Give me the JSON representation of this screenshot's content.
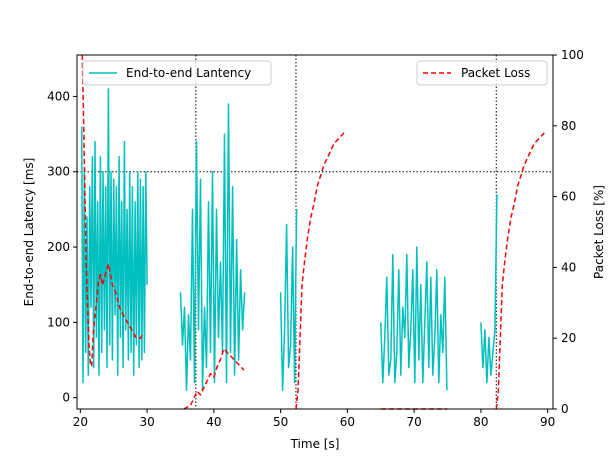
{
  "chart_data": {
    "type": "line",
    "xlabel": "Time [s]",
    "ylabel_left": "End-to-end Latency [ms]",
    "ylabel_right": "Packet Loss [%]",
    "xlim": [
      19.5,
      90.8
    ],
    "ylim_left": [
      -15,
      455
    ],
    "ylim_right": [
      0,
      100
    ],
    "x_ticks": [
      "20",
      "30",
      "40",
      "50",
      "60",
      "70",
      "80",
      "90"
    ],
    "y_left_ticks": [
      "0",
      "100",
      "200",
      "300",
      "400"
    ],
    "y_right_ticks": [
      "0",
      "20",
      "40",
      "60",
      "80",
      "100"
    ],
    "grid": false,
    "reference_lines": {
      "vertical_x": [
        37.3,
        52.3,
        82.3
      ],
      "horizontal_left_y": 300,
      "style": "dotted",
      "color": "#000000"
    },
    "legends": [
      {
        "label": "End-to-end Lantency",
        "placement": "upper-left"
      },
      {
        "label": "Packet Loss",
        "placement": "upper-right"
      }
    ],
    "series": [
      {
        "name": "End-to-end Lantency",
        "axis": "left",
        "color": "#00bfbf",
        "style": "solid",
        "segments": [
          {
            "x": [
              20.2,
              20.4,
              20.6,
              20.8,
              21.0,
              21.2,
              21.4,
              21.6,
              21.8,
              22.0,
              22.2,
              22.4,
              22.6,
              22.8,
              23.0,
              23.2,
              23.4,
              23.6,
              23.8,
              24.0,
              24.2,
              24.4,
              24.6,
              24.8,
              25.0,
              25.2,
              25.4,
              25.6,
              25.8,
              26.0,
              26.2,
              26.4,
              26.6,
              26.8,
              27.0,
              27.2,
              27.4,
              27.6,
              27.8,
              28.0,
              28.2,
              28.4,
              28.6,
              28.8,
              29.0,
              29.2,
              29.4,
              29.6,
              29.8,
              30.0
            ],
            "y": [
              360,
              20,
              300,
              60,
              240,
              30,
              280,
              120,
              320,
              40,
              340,
              80,
              260,
              30,
              320,
              60,
              300,
              90,
              280,
              40,
              410,
              70,
              300,
              50,
              290,
              110,
              280,
              30,
              320,
              80,
              260,
              40,
              340,
              90,
              250,
              50,
              300,
              60,
              280,
              30,
              260,
              70,
              300,
              40,
              290,
              50,
              280,
              60,
              300,
              150
            ]
          },
          {
            "x": [
              35.0,
              35.3,
              35.6,
              35.9,
              36.2,
              36.5,
              36.8,
              37.1,
              37.4,
              37.7,
              38.0,
              38.3,
              38.6,
              38.9,
              39.2,
              39.5,
              39.8,
              40.1,
              40.4,
              40.7,
              41.0,
              41.3,
              41.6,
              41.9,
              42.2,
              42.5,
              42.8,
              43.1,
              43.4,
              43.7,
              44.0,
              44.3,
              44.6
            ],
            "y": [
              140,
              70,
              120,
              10,
              110,
              50,
              250,
              20,
              340,
              90,
              290,
              10,
              120,
              40,
              260,
              60,
              300,
              20,
              250,
              80,
              180,
              60,
              350,
              20,
              390,
              60,
              280,
              30,
              210,
              50,
              170,
              90,
              140
            ]
          },
          {
            "x": [
              50.0,
              50.3,
              50.6,
              50.9,
              51.2,
              51.5,
              51.8,
              52.1,
              52.4
            ],
            "y": [
              140,
              10,
              90,
              230,
              40,
              70,
              200,
              20,
              250
            ]
          },
          {
            "x": [
              65.0,
              65.3,
              65.6,
              65.9,
              66.2,
              66.5,
              66.8,
              67.1,
              67.4,
              67.7,
              68.0,
              68.3,
              68.6,
              68.9,
              69.2,
              69.5,
              69.8,
              70.1,
              70.4,
              70.7,
              71.0,
              71.3,
              71.6,
              71.9,
              72.2,
              72.5,
              72.8,
              73.1,
              73.4,
              73.7,
              74.0,
              74.3,
              74.6,
              74.9
            ],
            "y": [
              100,
              20,
              80,
              160,
              30,
              50,
              190,
              20,
              60,
              170,
              30,
              120,
              80,
              190,
              40,
              90,
              170,
              20,
              200,
              50,
              150,
              20,
              100,
              180,
              40,
              160,
              30,
              80,
              170,
              20,
              110,
              60,
              160,
              10
            ]
          },
          {
            "x": [
              80.0,
              80.3,
              80.6,
              80.9,
              81.2,
              81.5,
              81.8,
              82.1,
              82.4
            ],
            "y": [
              100,
              40,
              90,
              20,
              80,
              30,
              60,
              90,
              270
            ]
          }
        ]
      },
      {
        "name": "Packet Loss",
        "axis": "right",
        "color": "#ff0000",
        "style": "dashed",
        "segments": [
          {
            "x": [
              20.3,
              20.5,
              20.7,
              20.9,
              21.1,
              21.3,
              21.5,
              21.7,
              21.9,
              22.1,
              22.4,
              22.7,
              23.0,
              23.3,
              23.6,
              23.9,
              24.2,
              24.5,
              24.8,
              25.1,
              25.4,
              25.7,
              26.0,
              26.3,
              26.6,
              26.9,
              27.2,
              27.5,
              27.8,
              28.1,
              28.4,
              28.7,
              29.0,
              29.3
            ],
            "y": [
              100,
              80,
              60,
              40,
              28,
              18,
              13,
              12,
              20,
              25,
              30,
              36,
              38,
              35,
              37,
              39,
              41,
              38,
              35,
              34,
              32,
              30,
              28,
              27,
              26,
              25,
              24,
              23,
              22,
              21,
              20,
              20,
              20,
              21
            ]
          },
          {
            "x": [
              35.5,
              36.0,
              36.5,
              37.0,
              37.5,
              38.0,
              38.5,
              39.0,
              39.5,
              40.0,
              40.5,
              41.0,
              41.5,
              42.0,
              42.5,
              43.0,
              43.5,
              44.0,
              44.5
            ],
            "y": [
              0,
              0.5,
              1,
              3,
              5,
              4,
              6,
              8,
              10,
              9,
              12,
              14,
              17,
              16,
              15,
              14,
              13,
              12,
              11
            ]
          },
          {
            "x": [
              52.3,
              52.6,
              52.9,
              53.2,
              53.6,
              54.0,
              54.5,
              55.0,
              55.5,
              56.0,
              56.5,
              57.0,
              57.5,
              58.0,
              58.5,
              59.0,
              59.5
            ],
            "y": [
              0,
              5,
              20,
              35,
              42,
              48,
              54,
              58,
              63,
              66,
              69,
              71,
              73,
              75,
              76,
              77,
              78
            ]
          },
          {
            "x": [
              65.0,
              67.0,
              69.0,
              71.0,
              73.0,
              75.0
            ],
            "y": [
              0,
              0,
              0,
              0,
              0,
              0
            ]
          },
          {
            "x": [
              82.3,
              82.6,
              82.9,
              83.2,
              83.6,
              84.0,
              84.5,
              85.0,
              85.5,
              86.0,
              86.5,
              87.0,
              87.5,
              88.0,
              88.5,
              89.0,
              89.5
            ],
            "y": [
              0,
              5,
              20,
              35,
              42,
              48,
              54,
              58,
              63,
              66,
              69,
              71,
              73,
              75,
              76,
              77,
              78
            ]
          }
        ]
      }
    ]
  }
}
